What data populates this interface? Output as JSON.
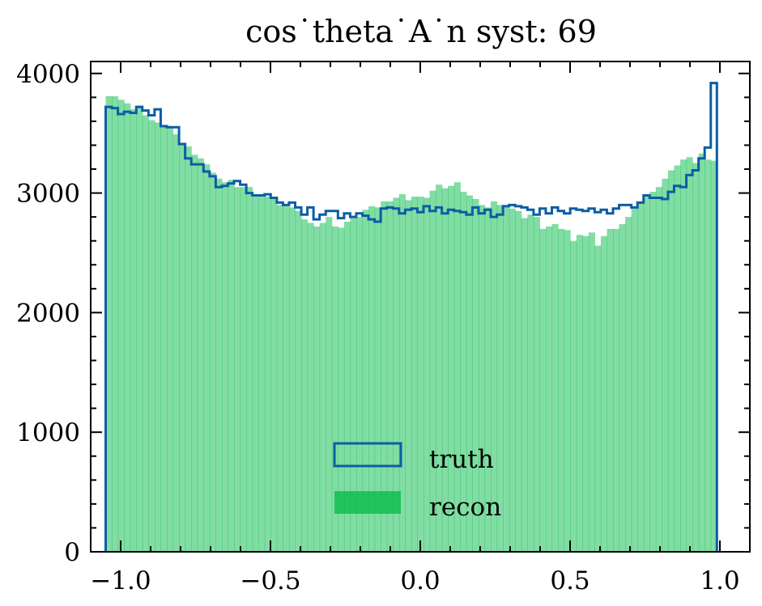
{
  "chart_data": {
    "type": "histogram",
    "title": "cos˙theta˙A˙n syst: 69",
    "xlabel": "",
    "ylabel": "",
    "xlim": [
      -1.1,
      1.1
    ],
    "ylim": [
      0,
      4100
    ],
    "x_ticks": [
      -1.0,
      -0.5,
      0.0,
      0.5,
      1.0
    ],
    "x_tick_labels": [
      "−1.0",
      "−0.5",
      "0.0",
      "0.5",
      "1.0"
    ],
    "y_ticks": [
      0,
      1000,
      2000,
      3000,
      4000
    ],
    "y_tick_labels": [
      "0",
      "1000",
      "2000",
      "3000",
      "4000"
    ],
    "bin_range": [
      -1.05,
      0.99
    ],
    "bins": 100,
    "legend_position": "lower-center",
    "series": [
      {
        "name": "truth",
        "style": "step",
        "color": "#0c5da5",
        "values": [
          3720,
          3710,
          3660,
          3680,
          3670,
          3720,
          3690,
          3650,
          3700,
          3560,
          3550,
          3550,
          3410,
          3290,
          3240,
          3240,
          3180,
          3140,
          3050,
          3060,
          3080,
          3100,
          3070,
          3000,
          2980,
          2980,
          2990,
          2960,
          2920,
          2900,
          2920,
          2880,
          2820,
          2880,
          2780,
          2820,
          2850,
          2850,
          2790,
          2830,
          2800,
          2830,
          2810,
          2780,
          2760,
          2870,
          2880,
          2870,
          2830,
          2860,
          2870,
          2840,
          2890,
          2850,
          2880,
          2830,
          2860,
          2850,
          2840,
          2820,
          2880,
          2830,
          2860,
          2800,
          2820,
          2890,
          2900,
          2890,
          2880,
          2860,
          2820,
          2870,
          2830,
          2880,
          2850,
          2830,
          2870,
          2860,
          2850,
          2870,
          2840,
          2860,
          2830,
          2870,
          2900,
          2900,
          2880,
          2920,
          2980,
          2960,
          2960,
          2950,
          3010,
          3060,
          3050,
          3150,
          3190,
          3290,
          3380,
          3920
        ]
      },
      {
        "name": "recon",
        "style": "filled",
        "color": "#00b945",
        "values": [
          3810,
          3810,
          3780,
          3750,
          3700,
          3730,
          3650,
          3610,
          3590,
          3560,
          3560,
          3490,
          3400,
          3390,
          3320,
          3290,
          3240,
          3170,
          3120,
          3090,
          3110,
          3050,
          3050,
          3050,
          2980,
          2990,
          2970,
          2960,
          2900,
          2890,
          2880,
          2850,
          2780,
          2750,
          2720,
          2750,
          2800,
          2720,
          2710,
          2760,
          2790,
          2800,
          2860,
          2890,
          2880,
          2930,
          2930,
          2960,
          2990,
          2940,
          2970,
          2970,
          2960,
          3020,
          3070,
          3040,
          3060,
          3090,
          3010,
          2980,
          2950,
          2900,
          2880,
          2930,
          2900,
          2880,
          2870,
          2850,
          2790,
          2820,
          2800,
          2700,
          2720,
          2740,
          2700,
          2690,
          2600,
          2650,
          2640,
          2670,
          2560,
          2640,
          2700,
          2700,
          2740,
          2800,
          2880,
          2930,
          2970,
          3010,
          3050,
          3120,
          3190,
          3230,
          3280,
          3300,
          3250,
          3330,
          3280,
          3270
        ]
      }
    ]
  }
}
